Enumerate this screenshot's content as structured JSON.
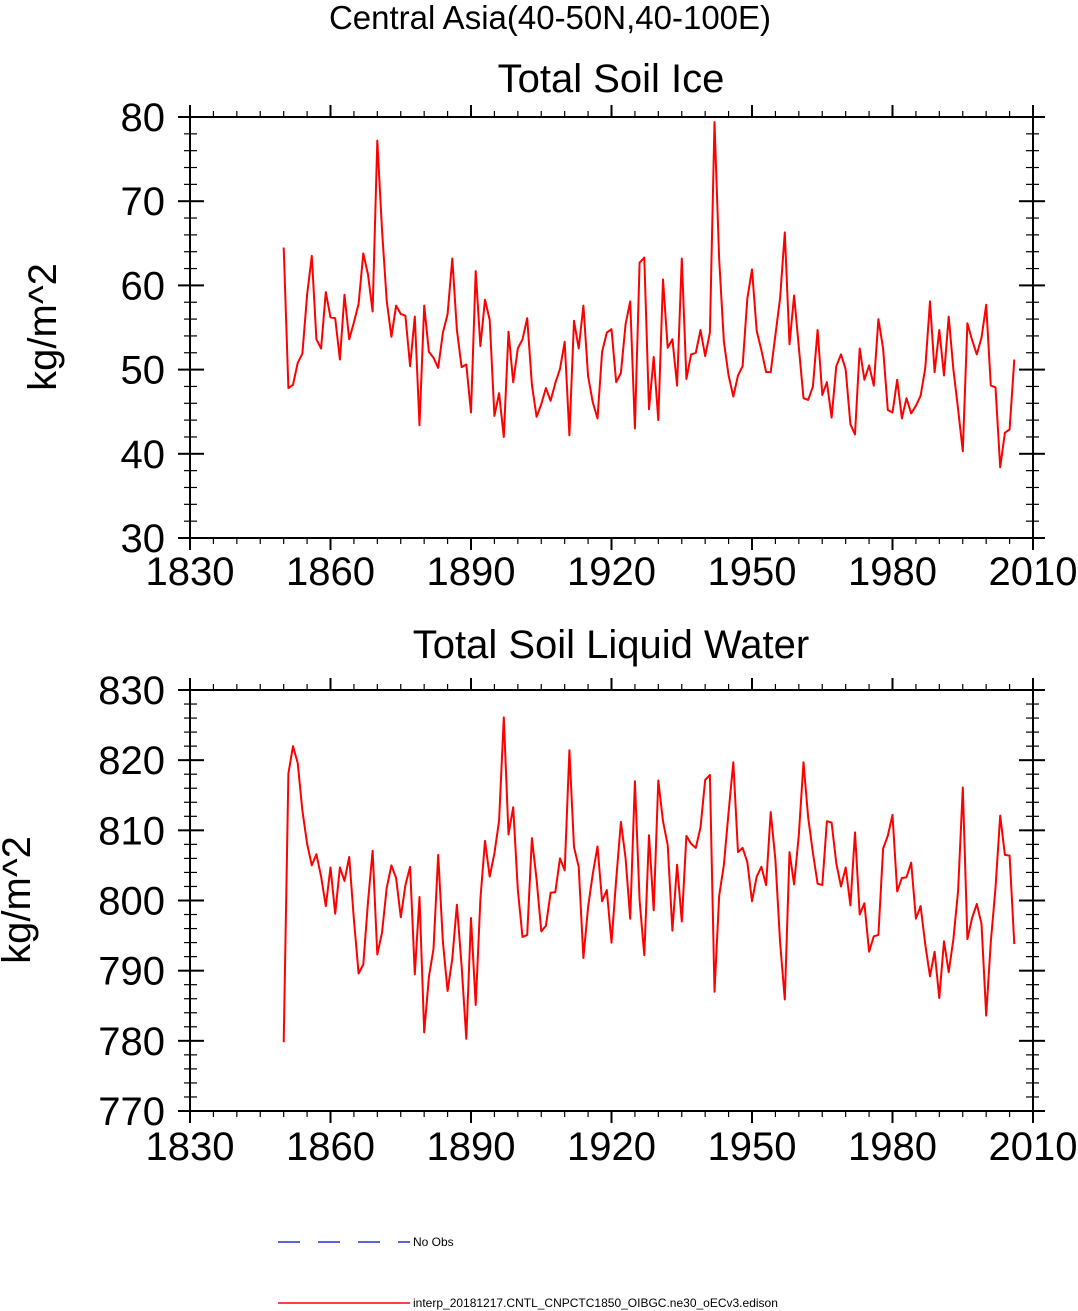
{
  "suptitle": "Central Asia(40-50N,40-100E)",
  "colors": {
    "model": "#ff0000",
    "obs": "#0000cc",
    "axis": "#000000"
  },
  "legend": {
    "obs_label": "No Obs",
    "model_label": "interp_20181217.CNTL_CNPCTC1850_OIBGC.ne30_oECv3.edison"
  },
  "chart_data": [
    {
      "type": "line",
      "title": "Total Soil Ice",
      "xlabel": "",
      "ylabel": "kg/m^2",
      "xlim": [
        1830,
        2010
      ],
      "ylim": [
        30,
        80
      ],
      "xticks": [
        1830,
        1860,
        1890,
        1920,
        1950,
        1980,
        2010
      ],
      "yticks": [
        30,
        40,
        50,
        60,
        70,
        80
      ],
      "series": [
        {
          "name": "interp_20181217.CNTL_CNPCTC1850_OIBGC.ne30_oECv3.edison",
          "x_start": 1850,
          "x_step": 1,
          "values": [
            64.5,
            47.8,
            48.2,
            50.8,
            51.9,
            58.9,
            63.5,
            53.6,
            52.5,
            59.2,
            56.2,
            56.1,
            51.2,
            58.9,
            53.6,
            55.6,
            57.8,
            63.8,
            61.3,
            56.9,
            77.2,
            66.6,
            58.2,
            53.9,
            57.6,
            56.6,
            56.4,
            50.4,
            56.3,
            43.4,
            57.6,
            52.1,
            51.4,
            50.2,
            54.4,
            56.6,
            63.2,
            54.7,
            50.3,
            50.6,
            44.9,
            61.7,
            52.8,
            58.3,
            55.9,
            44.5,
            47.2,
            42.0,
            54.5,
            48.5,
            52.5,
            53.6,
            56.1,
            48.2,
            44.4,
            45.9,
            47.8,
            46.3,
            48.4,
            50.1,
            53.3,
            42.2,
            55.8,
            52.5,
            57.6,
            49.2,
            46.1,
            44.2,
            52.1,
            54.4,
            54.8,
            48.5,
            49.6,
            55.4,
            58.1,
            43.0,
            62.7,
            63.3,
            45.3,
            51.5,
            44.0,
            60.7,
            52.6,
            53.6,
            48.1,
            63.2,
            48.9,
            51.8,
            52.0,
            54.7,
            51.6,
            54.4,
            79.4,
            63.0,
            53.3,
            49.3,
            46.8,
            49.3,
            50.4,
            58.4,
            61.9,
            54.6,
            52.3,
            49.7,
            49.7,
            54.1,
            58.5,
            66.3,
            53.0,
            58.8,
            52.7,
            46.6,
            46.4,
            48.0,
            54.7,
            47.0,
            48.5,
            44.3,
            50.4,
            51.8,
            50.0,
            43.5,
            42.3,
            52.5,
            48.8,
            50.5,
            48.1,
            56.0,
            52.5,
            45.2,
            44.9,
            48.8,
            44.2,
            46.6,
            44.8,
            45.7,
            46.9,
            50.2,
            58.1,
            49.7,
            54.7,
            49.3,
            56.3,
            50.0,
            45.3,
            40.3,
            55.5,
            53.5,
            51.8,
            53.8,
            57.7,
            48.1,
            47.9,
            38.4,
            42.5,
            42.9,
            51.2
          ]
        }
      ]
    },
    {
      "type": "line",
      "title": "Total Soil Liquid Water",
      "xlabel": "",
      "ylabel": "kg/m^2",
      "xlim": [
        1830,
        2010
      ],
      "ylim": [
        770,
        830
      ],
      "xticks": [
        1830,
        1860,
        1890,
        1920,
        1950,
        1980,
        2010
      ],
      "yticks": [
        770,
        780,
        790,
        800,
        810,
        820,
        830
      ],
      "series": [
        {
          "name": "interp_20181217.CNTL_CNPCTC1850_OIBGC.ne30_oECv3.edison",
          "x_start": 1850,
          "x_step": 1,
          "values": [
            779.8,
            818.1,
            822.0,
            819.6,
            812.8,
            808.1,
            805.0,
            806.6,
            803.4,
            799.2,
            804.7,
            798.1,
            804.7,
            802.8,
            806.2,
            797.3,
            789.6,
            790.9,
            799.8,
            807.1,
            792.3,
            795.4,
            801.8,
            805.0,
            803.2,
            797.6,
            802.2,
            804.8,
            789.5,
            800.5,
            781.2,
            789.1,
            793.1,
            806.5,
            794.1,
            787.1,
            791.7,
            799.4,
            790.7,
            780.3,
            797.5,
            785.1,
            800.2,
            808.5,
            803.4,
            806.7,
            811.4,
            826.1,
            809.4,
            813.3,
            801.6,
            794.8,
            795.1,
            808.9,
            803.0,
            795.6,
            796.4,
            801.1,
            801.2,
            806.0,
            804.3,
            821.4,
            807.6,
            804.8,
            791.8,
            799.1,
            803.8,
            807.7,
            799.9,
            801.5,
            794.0,
            803.0,
            811.2,
            806.0,
            797.4,
            817.0,
            800.0,
            792.2,
            809.3,
            798.6,
            817.1,
            811.3,
            807.9,
            795.7,
            805.1,
            797.0,
            809.2,
            808.1,
            807.5,
            810.4,
            817.2,
            817.9,
            787.0,
            800.7,
            805.1,
            812.6,
            819.7,
            806.9,
            807.5,
            805.5,
            799.9,
            803.4,
            804.8,
            802.2,
            812.6,
            805.8,
            794.0,
            785.9,
            806.9,
            802.3,
            809.3,
            819.7,
            811.8,
            806.8,
            802.4,
            802.2,
            811.3,
            811.1,
            805.3,
            802.0,
            804.7,
            799.3,
            809.7,
            798.0,
            799.6,
            792.7,
            794.9,
            795.1,
            807.4,
            809.2,
            812.2,
            801.3,
            803.2,
            803.3,
            805.4,
            797.4,
            799.2,
            793.7,
            789.2,
            792.7,
            786.1,
            794.2,
            789.8,
            794.5,
            801.4,
            816.1,
            794.5,
            797.5,
            799.5,
            796.7,
            783.6,
            794.1,
            801.8,
            812.1,
            806.5,
            806.4,
            793.8
          ]
        }
      ]
    }
  ]
}
